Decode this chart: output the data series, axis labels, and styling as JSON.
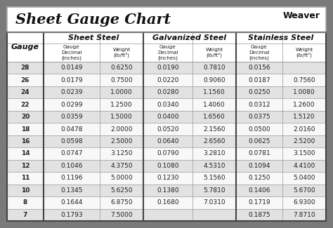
{
  "title": "Sheet Gauge Chart",
  "outer_bg": "#7a7a7a",
  "inner_bg": "#ffffff",
  "row_bg_odd": "#e2e2e2",
  "row_bg_even": "#f8f8f8",
  "gauges": [
    28,
    26,
    24,
    22,
    20,
    18,
    16,
    14,
    12,
    11,
    10,
    8,
    7
  ],
  "sheet_steel": {
    "label": "Sheet Steel",
    "decimal": [
      "0.0149",
      "0.0179",
      "0.0239",
      "0.0299",
      "0.0359",
      "0.0478",
      "0.0598",
      "0.0747",
      "0.1046",
      "0.1196",
      "0.1345",
      "0.1644",
      "0.1793"
    ],
    "weight": [
      "0.6250",
      "0.7500",
      "1.0000",
      "1.2500",
      "1.5000",
      "2.0000",
      "2.5000",
      "3.1250",
      "4.3750",
      "5.0000",
      "5.6250",
      "6.8750",
      "7.5000"
    ]
  },
  "galvanized_steel": {
    "label": "Galvanized Steel",
    "decimal": [
      "0.0190",
      "0.0220",
      "0.0280",
      "0.0340",
      "0.0400",
      "0.0520",
      "0.0640",
      "0.0790",
      "0.1080",
      "0.1230",
      "0.1380",
      "0.1680",
      ""
    ],
    "weight": [
      "0.7810",
      "0.9060",
      "1.1560",
      "1.4060",
      "1.6560",
      "2.1560",
      "2.6560",
      "3.2810",
      "4.5310",
      "5.1560",
      "5.7810",
      "7.0310",
      ""
    ]
  },
  "stainless_steel": {
    "label": "Stainless Steel",
    "decimal": [
      "0.0156",
      "0.0187",
      "0.0250",
      "0.0312",
      "0.0375",
      "0.0500",
      "0.0625",
      "0.0781",
      "0.1094",
      "0.1250",
      "0.1406",
      "0.1719",
      "0.1875"
    ],
    "weight": [
      "",
      "0.7560",
      "1.0080",
      "1.2600",
      "1.5120",
      "2.0160",
      "2.5200",
      "3.1500",
      "4.4100",
      "5.0400",
      "5.6700",
      "6.9300",
      "7.8710"
    ]
  },
  "text_color": "#222222",
  "border_color": "#444444",
  "grid_color": "#999999",
  "title_color": "#111111",
  "weight_superscript": "2"
}
